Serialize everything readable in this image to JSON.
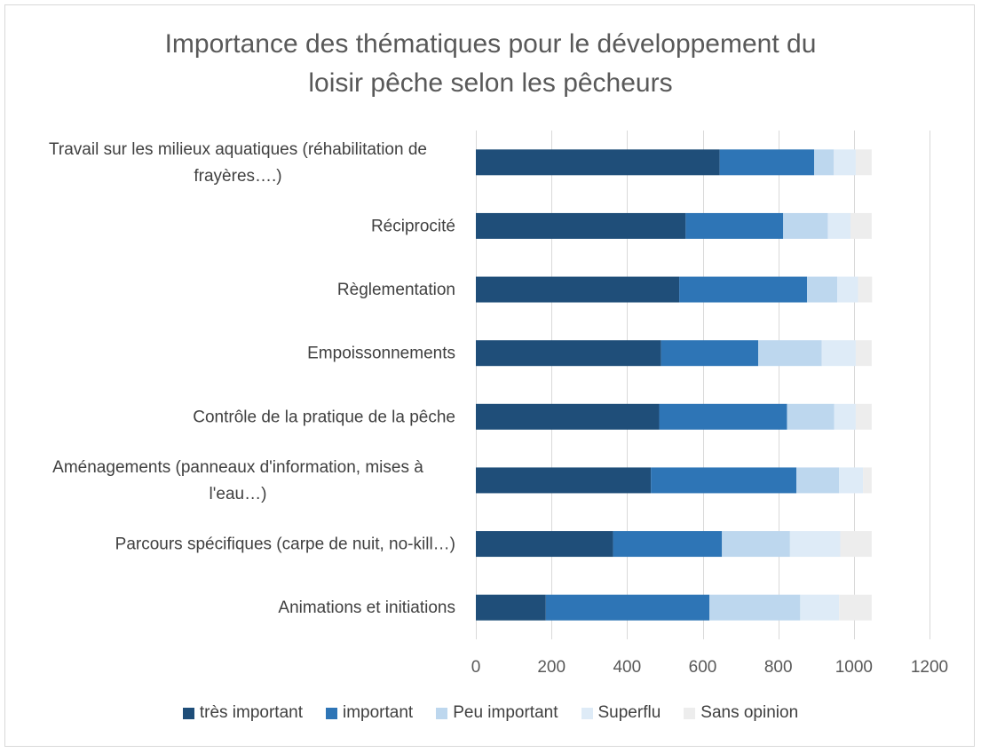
{
  "chart_data": {
    "type": "bar",
    "orientation": "horizontal",
    "stacked": true,
    "title": "Importance des thématiques pour le développement du\nloisir pêche selon les pêcheurs",
    "categories": [
      "Travail sur les milieux aquatiques (réhabilitation de frayères….)",
      "Réciprocité",
      "Règlementation",
      "Empoissonnements",
      "Contrôle de la pratique de la pêche",
      "Aménagements (panneaux d'information, mises à l'eau…)",
      "Parcours spécifiques (carpe de nuit, no-kill…)",
      "Animations et initiations"
    ],
    "category_lines": [
      [
        "Travail sur les milieux aquatiques (réhabilitation de",
        "frayères….)"
      ],
      [
        "Réciprocité"
      ],
      [
        "Règlementation"
      ],
      [
        "Empoissonnements"
      ],
      [
        "Contrôle de la pratique de la pêche"
      ],
      [
        "Aménagements (panneaux d'information, mises à",
        "l'eau…)"
      ],
      [
        "Parcours spécifiques (carpe de nuit, no-kill…)"
      ],
      [
        "Animations et initiations"
      ]
    ],
    "series": [
      {
        "name": "très important",
        "color": "#1f4e79",
        "values": [
          645,
          555,
          538,
          490,
          485,
          463,
          363,
          185
        ]
      },
      {
        "name": "important",
        "color": "#2e75b6",
        "values": [
          250,
          258,
          338,
          257,
          338,
          385,
          288,
          433
        ]
      },
      {
        "name": "Peu important",
        "color": "#bdd7ee",
        "values": [
          52,
          118,
          80,
          168,
          125,
          113,
          180,
          240
        ]
      },
      {
        "name": "Superflu",
        "color": "#deebf7",
        "values": [
          58,
          60,
          55,
          90,
          57,
          63,
          133,
          103
        ]
      },
      {
        "name": "Sans opinion",
        "color": "#ededed",
        "values": [
          42,
          56,
          37,
          42,
          42,
          23,
          83,
          86
        ]
      }
    ],
    "xlim": [
      0,
      1200
    ],
    "xticks": [
      0,
      200,
      400,
      600,
      800,
      1000,
      1200
    ],
    "xticks_labels": [
      "0",
      "200",
      "400",
      "600",
      "800",
      "1000",
      "1200"
    ],
    "grid": "vertical",
    "legend_position": "bottom"
  }
}
